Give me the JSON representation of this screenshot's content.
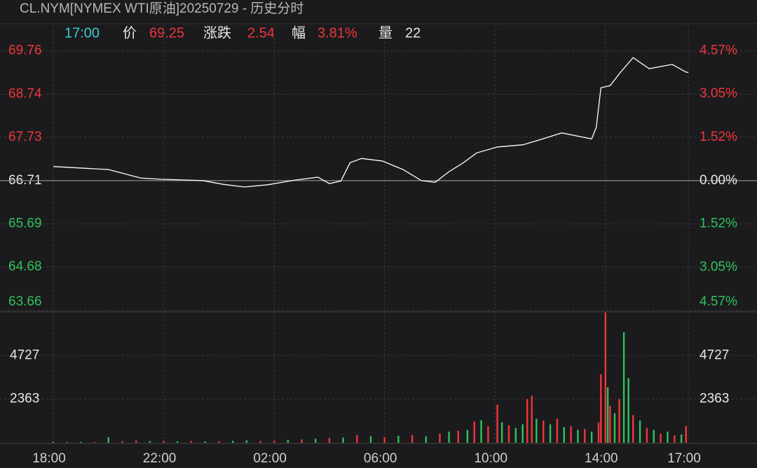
{
  "chart_data": {
    "type": "line",
    "title": "CL.NYM[NYMEX WTI原油]20250729 - 历史分时",
    "info": {
      "time": "17:00",
      "price_label": "价",
      "price": 69.25,
      "change_label": "涨跌",
      "change": 2.54,
      "pct_label": "幅",
      "pct": "3.81%",
      "volume_label": "量",
      "volume": 22
    },
    "color": "#ffffff",
    "up_color": "#f0353a",
    "down_color": "#2fc25b",
    "grid": true,
    "xlim": [
      "18:00",
      "17:00"
    ],
    "xticks": [
      "18:00",
      "22:00",
      "02:00",
      "06:00",
      "10:00",
      "14:00",
      "17:00"
    ],
    "ylim": [
      63.66,
      69.76
    ],
    "yticks": [
      69.76,
      68.74,
      67.73,
      66.71,
      65.69,
      64.68,
      63.66
    ],
    "y2lim": [
      -4.57,
      4.57
    ],
    "y2ticks": [
      {
        "value": 4.57,
        "label": "4.57%"
      },
      {
        "value": 3.05,
        "label": "3.05%"
      },
      {
        "value": 1.52,
        "label": "1.52%"
      },
      {
        "value": 0,
        "label": "0.00%"
      },
      {
        "value": -1.52,
        "label": "1.52%"
      },
      {
        "value": -3.05,
        "label": "3.05%"
      },
      {
        "value": -4.57,
        "label": "4.57%"
      }
    ],
    "x": [
      "18:00",
      "20:00",
      "21:10",
      "21:55",
      "23:25",
      "00:10",
      "00:55",
      "01:45",
      "02:45",
      "03:35",
      "04:00",
      "04:25",
      "04:45",
      "05:10",
      "05:55",
      "06:40",
      "07:20",
      "07:50",
      "08:20",
      "08:50",
      "09:20",
      "10:05",
      "11:00",
      "11:35",
      "12:25",
      "13:30",
      "13:40",
      "13:50",
      "14:10",
      "14:30",
      "15:00",
      "15:35",
      "16:25",
      "16:55",
      "17:00"
    ],
    "values": [
      67.04,
      66.97,
      66.77,
      66.74,
      66.71,
      66.62,
      66.56,
      66.61,
      66.72,
      66.79,
      66.64,
      66.7,
      67.13,
      67.23,
      67.17,
      66.97,
      66.71,
      66.67,
      66.92,
      67.12,
      67.36,
      67.5,
      67.55,
      67.66,
      67.83,
      67.69,
      67.96,
      68.89,
      68.94,
      69.22,
      69.6,
      69.34,
      69.44,
      69.26,
      69.25
    ],
    "volume_panel": {
      "ylim": [
        0,
        7090
      ],
      "yticks": [
        4727,
        2363
      ],
      "x": [
        "18:00",
        "18:30",
        "19:00",
        "19:30",
        "20:00",
        "20:30",
        "21:00",
        "21:30",
        "22:00",
        "22:30",
        "23:00",
        "23:30",
        "00:00",
        "00:30",
        "01:00",
        "01:30",
        "02:00",
        "02:30",
        "03:00",
        "03:30",
        "04:00",
        "04:30",
        "05:00",
        "05:30",
        "06:00",
        "06:30",
        "07:00",
        "07:30",
        "08:00",
        "08:20",
        "08:40",
        "09:00",
        "09:15",
        "09:30",
        "09:45",
        "10:05",
        "10:15",
        "10:30",
        "10:45",
        "11:00",
        "11:10",
        "11:20",
        "11:30",
        "11:45",
        "12:00",
        "12:15",
        "12:30",
        "12:45",
        "13:00",
        "13:15",
        "13:30",
        "13:45",
        "13:50",
        "14:00",
        "14:05",
        "14:10",
        "14:20",
        "14:30",
        "14:40",
        "14:50",
        "15:00",
        "15:15",
        "15:30",
        "15:45",
        "16:00",
        "16:15",
        "16:30",
        "16:45",
        "16:55"
      ],
      "values": [
        60,
        40,
        50,
        40,
        300,
        80,
        120,
        90,
        110,
        80,
        100,
        70,
        90,
        110,
        130,
        100,
        120,
        150,
        180,
        220,
        260,
        280,
        420,
        350,
        300,
        380,
        420,
        350,
        500,
        600,
        650,
        700,
        1150,
        1220,
        900,
        2060,
        1100,
        950,
        800,
        1000,
        2360,
        2550,
        1300,
        1200,
        1000,
        1300,
        850,
        900,
        700,
        750,
        600,
        1100,
        3700,
        7050,
        3000,
        2000,
        1600,
        2360,
        5980,
        3500,
        1500,
        1200,
        800,
        700,
        500,
        600,
        400,
        450,
        900
      ],
      "colors": [
        "#2fc25b",
        "#f0353a",
        "#2fc25b",
        "#f0353a",
        "#2fc25b",
        "#f0353a",
        "#f0353a",
        "#2fc25b",
        "#f0353a",
        "#2fc25b",
        "#f0353a",
        "#2fc25b",
        "#f0353a",
        "#2fc25b",
        "#2fc25b",
        "#f0353a",
        "#f0353a",
        "#2fc25b",
        "#f0353a",
        "#2fc25b",
        "#f0353a",
        "#2fc25b",
        "#f0353a",
        "#2fc25b",
        "#f0353a",
        "#2fc25b",
        "#f0353a",
        "#2fc25b",
        "#f0353a",
        "#2fc25b",
        "#f0353a",
        "#2fc25b",
        "#f0353a",
        "#2fc25b",
        "#f0353a",
        "#f0353a",
        "#2fc25b",
        "#f0353a",
        "#2fc25b",
        "#2fc25b",
        "#f0353a",
        "#f0353a",
        "#2fc25b",
        "#f0353a",
        "#2fc25b",
        "#f0353a",
        "#2fc25b",
        "#f0353a",
        "#2fc25b",
        "#f0353a",
        "#2fc25b",
        "#f0353a",
        "#f0353a",
        "#f0353a",
        "#2fc25b",
        "#f0353a",
        "#2fc25b",
        "#f0353a",
        "#2fc25b",
        "#2fc25b",
        "#f0353a",
        "#2fc25b",
        "#f0353a",
        "#2fc25b",
        "#f0353a",
        "#2fc25b",
        "#f0353a",
        "#2fc25b",
        "#f0353a"
      ]
    }
  }
}
